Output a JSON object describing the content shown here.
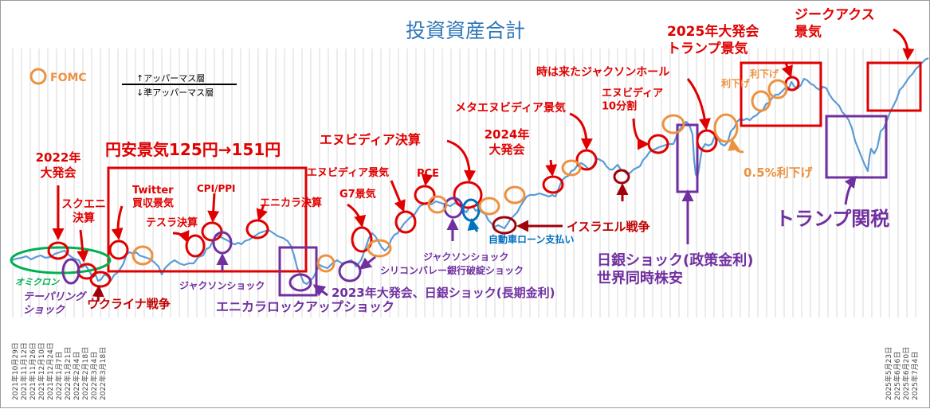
{
  "chart_data": {
    "type": "line",
    "title": "投資資産合計",
    "legend": {
      "marker_label": "FOMC",
      "upper_label": "↑アッパーマス層",
      "lower_label": "↓準アッパーマス層"
    },
    "colors": {
      "line": "#5b9bd5",
      "title": "#2e75b6",
      "red": "#e00000",
      "purple": "#7030a0",
      "orange": "#ed9140",
      "green": "#00b050",
      "navy": "#1f3864",
      "grid": "#d9d9d9"
    },
    "series": [
      {
        "values": [
          [
            0,
            326
          ],
          [
            6,
            324
          ],
          [
            12,
            323
          ],
          [
            18,
            321
          ],
          [
            24,
            325
          ],
          [
            30,
            322
          ],
          [
            36,
            320
          ],
          [
            42,
            323
          ],
          [
            48,
            322
          ],
          [
            54,
            318
          ],
          [
            60,
            316
          ],
          [
            66,
            314
          ],
          [
            72,
            320
          ],
          [
            78,
            324
          ],
          [
            84,
            326
          ],
          [
            88,
            335
          ],
          [
            92,
            332
          ],
          [
            96,
            338
          ],
          [
            100,
            345
          ],
          [
            104,
            342
          ],
          [
            108,
            352
          ],
          [
            112,
            350
          ],
          [
            116,
            344
          ],
          [
            120,
            346
          ],
          [
            124,
            352
          ],
          [
            128,
            345
          ],
          [
            134,
            340
          ],
          [
            140,
            330
          ],
          [
            144,
            318
          ],
          [
            148,
            316
          ],
          [
            152,
            318
          ],
          [
            156,
            316
          ],
          [
            160,
            320
          ],
          [
            166,
            322
          ],
          [
            172,
            324
          ],
          [
            178,
            328
          ],
          [
            184,
            334
          ],
          [
            188,
            344
          ],
          [
            192,
            336
          ],
          [
            198,
            330
          ],
          [
            204,
            326
          ],
          [
            210,
            330
          ],
          [
            216,
            332
          ],
          [
            222,
            330
          ],
          [
            228,
            330
          ],
          [
            234,
            322
          ],
          [
            240,
            320
          ],
          [
            244,
            312
          ],
          [
            248,
            310
          ],
          [
            252,
            302
          ],
          [
            256,
            294
          ],
          [
            260,
            296
          ],
          [
            264,
            298
          ],
          [
            268,
            300
          ],
          [
            272,
            302
          ],
          [
            276,
            305
          ],
          [
            280,
            306
          ],
          [
            284,
            304
          ],
          [
            288,
            306
          ],
          [
            292,
            302
          ],
          [
            298,
            300
          ],
          [
            304,
            296
          ],
          [
            310,
            292
          ],
          [
            316,
            290
          ],
          [
            322,
            288
          ],
          [
            328,
            292
          ],
          [
            334,
            296
          ],
          [
            340,
            298
          ],
          [
            346,
            302
          ],
          [
            350,
            308
          ],
          [
            354,
            320
          ],
          [
            358,
            336
          ],
          [
            362,
            344
          ],
          [
            366,
            354
          ],
          [
            370,
            356
          ],
          [
            374,
            352
          ],
          [
            378,
            348
          ],
          [
            382,
            340
          ],
          [
            386,
            332
          ],
          [
            390,
            334
          ],
          [
            396,
            336
          ],
          [
            402,
            330
          ],
          [
            408,
            326
          ],
          [
            414,
            330
          ],
          [
            420,
            328
          ],
          [
            426,
            326
          ],
          [
            432,
            334
          ],
          [
            438,
            326
          ],
          [
            444,
            310
          ],
          [
            448,
            298
          ],
          [
            452,
            292
          ],
          [
            456,
            296
          ],
          [
            460,
            303
          ],
          [
            464,
            310
          ],
          [
            468,
            314
          ],
          [
            472,
            310
          ],
          [
            476,
            300
          ],
          [
            480,
            294
          ],
          [
            484,
            292
          ],
          [
            488,
            286
          ],
          [
            492,
            280
          ],
          [
            496,
            276
          ],
          [
            500,
            272
          ],
          [
            504,
            270
          ],
          [
            508,
            264
          ],
          [
            512,
            258
          ],
          [
            516,
            256
          ],
          [
            520,
            254
          ],
          [
            526,
            256
          ],
          [
            532,
            252
          ],
          [
            538,
            254
          ],
          [
            544,
            256
          ],
          [
            550,
            258
          ],
          [
            556,
            254
          ],
          [
            562,
            258
          ],
          [
            566,
            262
          ],
          [
            570,
            266
          ],
          [
            574,
            260
          ],
          [
            578,
            258
          ],
          [
            582,
            264
          ],
          [
            586,
            262
          ],
          [
            590,
            266
          ],
          [
            594,
            268
          ],
          [
            598,
            276
          ],
          [
            602,
            280
          ],
          [
            606,
            284
          ],
          [
            610,
            282
          ],
          [
            614,
            284
          ],
          [
            618,
            286
          ],
          [
            622,
            280
          ],
          [
            626,
            274
          ],
          [
            630,
            270
          ],
          [
            634,
            266
          ],
          [
            638,
            258
          ],
          [
            642,
            252
          ],
          [
            646,
            246
          ],
          [
            650,
            244
          ],
          [
            656,
            244
          ],
          [
            662,
            242
          ],
          [
            668,
            244
          ],
          [
            674,
            246
          ],
          [
            678,
            244
          ],
          [
            682,
            246
          ],
          [
            686,
            236
          ],
          [
            690,
            226
          ],
          [
            694,
            222
          ],
          [
            698,
            220
          ],
          [
            702,
            214
          ],
          [
            706,
            212
          ],
          [
            710,
            206
          ],
          [
            714,
            204
          ],
          [
            718,
            206
          ],
          [
            722,
            210
          ],
          [
            726,
            212
          ],
          [
            730,
            206
          ],
          [
            734,
            198
          ],
          [
            738,
            200
          ],
          [
            742,
            202
          ],
          [
            746,
            208
          ],
          [
            750,
            212
          ],
          [
            754,
            212
          ],
          [
            760,
            206
          ],
          [
            764,
            212
          ],
          [
            768,
            214
          ],
          [
            772,
            218
          ],
          [
            776,
            216
          ],
          [
            780,
            212
          ],
          [
            784,
            210
          ],
          [
            788,
            208
          ],
          [
            792,
            200
          ],
          [
            796,
            196
          ],
          [
            800,
            190
          ],
          [
            804,
            188
          ],
          [
            808,
            186
          ],
          [
            812,
            184
          ],
          [
            818,
            182
          ],
          [
            824,
            180
          ],
          [
            830,
            180
          ],
          [
            834,
            170
          ],
          [
            838,
            162
          ],
          [
            842,
            156
          ],
          [
            846,
            152
          ],
          [
            850,
            156
          ],
          [
            854,
            168
          ],
          [
            856,
            200
          ],
          [
            858,
            218
          ],
          [
            860,
            222
          ],
          [
            862,
            212
          ],
          [
            864,
            198
          ],
          [
            866,
            186
          ],
          [
            870,
            180
          ],
          [
            874,
            182
          ],
          [
            878,
            180
          ],
          [
            882,
            170
          ],
          [
            886,
            174
          ],
          [
            890,
            180
          ],
          [
            894,
            182
          ],
          [
            898,
            178
          ],
          [
            902,
            164
          ],
          [
            906,
            160
          ],
          [
            910,
            152
          ],
          [
            914,
            148
          ],
          [
            918,
            150
          ],
          [
            922,
            148
          ],
          [
            926,
            150
          ],
          [
            930,
            146
          ],
          [
            934,
            144
          ],
          [
            938,
            140
          ],
          [
            942,
            138
          ],
          [
            946,
            130
          ],
          [
            950,
            128
          ],
          [
            954,
            122
          ],
          [
            958,
            118
          ],
          [
            962,
            118
          ],
          [
            966,
            114
          ],
          [
            970,
            110
          ],
          [
            974,
            112
          ],
          [
            978,
            102
          ],
          [
            982,
            108
          ],
          [
            986,
            110
          ],
          [
            990,
            106
          ],
          [
            994,
            98
          ],
          [
            998,
            100
          ],
          [
            1002,
            104
          ],
          [
            1006,
            106
          ],
          [
            1010,
            110
          ],
          [
            1014,
            112
          ],
          [
            1018,
            108
          ],
          [
            1022,
            110
          ],
          [
            1026,
            118
          ],
          [
            1030,
            124
          ],
          [
            1034,
            128
          ],
          [
            1038,
            132
          ],
          [
            1042,
            140
          ],
          [
            1046,
            144
          ],
          [
            1050,
            150
          ],
          [
            1054,
            160
          ],
          [
            1058,
            176
          ],
          [
            1062,
            186
          ],
          [
            1066,
            196
          ],
          [
            1070,
            206
          ],
          [
            1074,
            214
          ],
          [
            1076,
            196
          ],
          [
            1078,
            186
          ],
          [
            1082,
            192
          ],
          [
            1086,
            184
          ],
          [
            1090,
            164
          ],
          [
            1094,
            160
          ],
          [
            1098,
            150
          ],
          [
            1102,
            140
          ],
          [
            1106,
            132
          ],
          [
            1110,
            124
          ],
          [
            1114,
            112
          ],
          [
            1118,
            108
          ],
          [
            1122,
            102
          ],
          [
            1126,
            96
          ],
          [
            1130,
            92
          ],
          [
            1134,
            86
          ],
          [
            1138,
            82
          ],
          [
            1142,
            78
          ],
          [
            1146,
            74
          ],
          [
            1150,
            72
          ]
        ]
      }
    ],
    "xaxis": {
      "first_tick": "2021年10月29日",
      "first_ticks": [
        "2021年10月29日",
        "2021年11月12日",
        "2021年11月26日",
        "2021年12月10日",
        "2021年12月24日",
        "2022年1月7日",
        "2022年1月21日",
        "2022年2月4日",
        "2022年2月18日",
        "2022年3月4日",
        "2022年3月18日"
      ],
      "last_ticks": [
        "2025年5月23日",
        "2025年6月6日",
        "2025年6月20日",
        "2025年7月4日"
      ],
      "last_tick": "2025年7月4日"
    },
    "annotations": {
      "big_2022": "2022年\n大発会",
      "square_enix": "スクエニ\n決算",
      "omicron": "オミクロン",
      "tapering": "テーパリング\nショック",
      "ukraine": "ウクライナ戦争",
      "yen_weak": "円安景気125円→151円",
      "twitter": "Twitter\n買収景気",
      "tesla": "テスラ決算",
      "cpi": "CPI/PPI",
      "jackson1": "ジャクソンショック",
      "enikara": "エニカラ決算",
      "enikara_lockup": "エニカラロックアップショック",
      "nvidia_boom": "エヌビディア景気",
      "g7": "G7景気",
      "pce": "PCE",
      "nvidia_earnings": "エヌビディア決算",
      "jackson2": "ジャクソンショック",
      "svb": "シリコンバレー銀行破綻ショック",
      "big_2023": "2023年大発会、日銀ショック(長期金利)",
      "auto_loan": "自動車ローン支払い",
      "israel": "イスラエル戦争",
      "big_2024": "2024年\n大発会",
      "meta_nvidia": "メタエヌビディア景気",
      "nvidia_split": "エヌビディア\n10分割",
      "jackson_time": "時は来たジャクソンホール",
      "boj_shock": "日銀ショック(政策金利)\n世界同時株安",
      "cut_05": "0.5%利下げ",
      "rate_cut1": "利下げ",
      "rate_cut2": "利下げ",
      "big_2025": "2025年大発会\nトランプ景気",
      "tariff": "トランプ関税",
      "zeekax": "ジークアクス\n景気"
    }
  }
}
